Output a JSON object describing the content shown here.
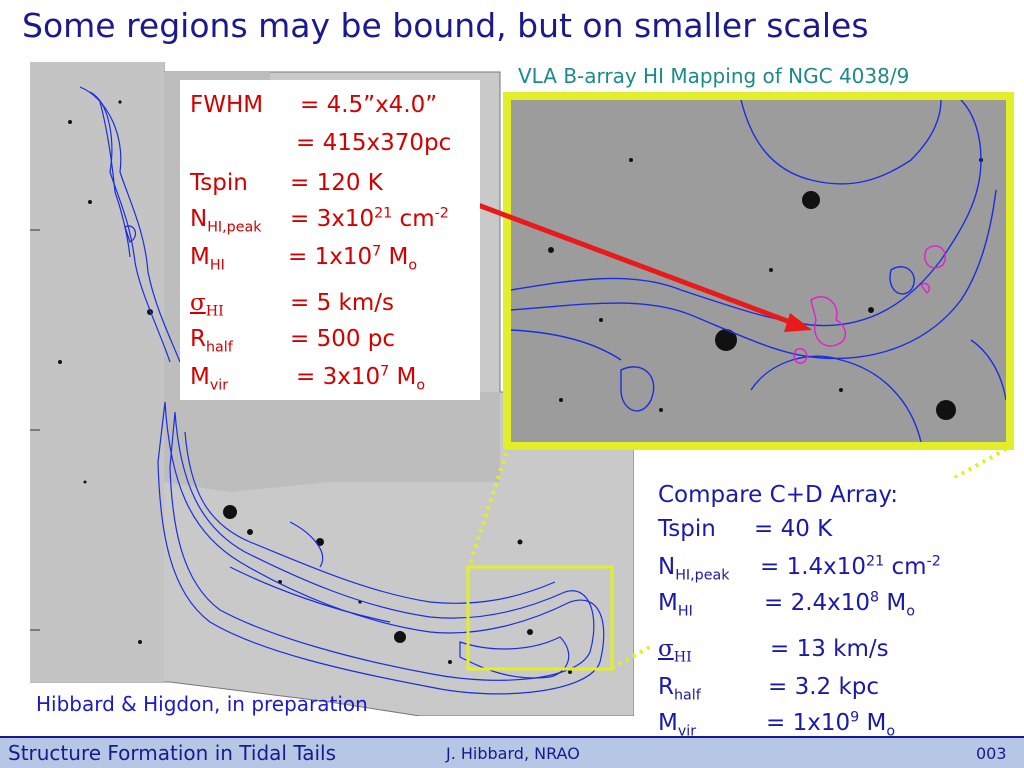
{
  "slide": {
    "title": "Some regions may be bound, but on smaller scales",
    "vla_caption": "VLA B-array HI Mapping of NGC 4038/9",
    "credit": "Hibbard & Higdon, in preparation"
  },
  "b_array_params": {
    "fwhm_label": "FWHM",
    "fwhm_value": "= 4.5”x4.0”",
    "fwhm_value_2": "= 415x370pc",
    "tspin_label": "Tspin",
    "tspin_value": "= 120 K",
    "nhi_label": "N",
    "nhi_sub": "HI,peak",
    "nhi_value": "= 3x10",
    "nhi_exp": "21",
    "nhi_unit": " cm",
    "nhi_unit_exp": "-2",
    "mhi_label": "M",
    "mhi_sub": "HI",
    "mhi_value": "= 1x10",
    "mhi_exp": "7",
    "mhi_unit": " M",
    "mhi_unit_sub": "o",
    "sigma_symbol": "σ",
    "sigma_sub": "HI",
    "sigma_value": "= 5 km/s",
    "rhalf_label": "R",
    "rhalf_sub": "half",
    "rhalf_value": "= 500 pc",
    "mvir_label": "M",
    "mvir_sub": "vir",
    "mvir_value": "= 3x10",
    "mvir_exp": "7",
    "mvir_unit": " M",
    "mvir_unit_sub": "o"
  },
  "cd_array_params": {
    "heading": "Compare C+D Array:",
    "tspin_label": "Tspin",
    "tspin_value": "=  40 K",
    "nhi_label": "N",
    "nhi_sub": "HI,peak",
    "nhi_value": "= 1.4x10",
    "nhi_exp": "21",
    "nhi_unit": " cm",
    "nhi_unit_exp": "-2",
    "mhi_label": "M",
    "mhi_sub": "HI",
    "mhi_value": "= 2.4x10",
    "mhi_exp": "8",
    "mhi_unit": " M",
    "mhi_unit_sub": "o",
    "sigma_symbol": "σ",
    "sigma_sub": "HI",
    "sigma_value": "= 13 km/s",
    "rhalf_label": "R",
    "rhalf_sub": "half",
    "rhalf_value": "= 3.2 kpc",
    "mvir_label": "M",
    "mvir_sub": "vir",
    "mvir_value": "= 1x10",
    "mvir_exp": "9",
    "mvir_unit": " M",
    "mvir_unit_sub": "o"
  },
  "footer": {
    "title": "Structure Formation in Tidal Tails",
    "author": "J. Hibbard, NRAO",
    "date_fragment": "003"
  },
  "colors": {
    "title": "#1a1a8c",
    "params_red": "#d40000",
    "contour_blue": "#1a2ee0",
    "contour_magenta": "#e020c8",
    "highlight_yellow": "#e3ee2a",
    "vla_caption": "#1d8a8a",
    "footer_bg": "#b6c6e4"
  }
}
